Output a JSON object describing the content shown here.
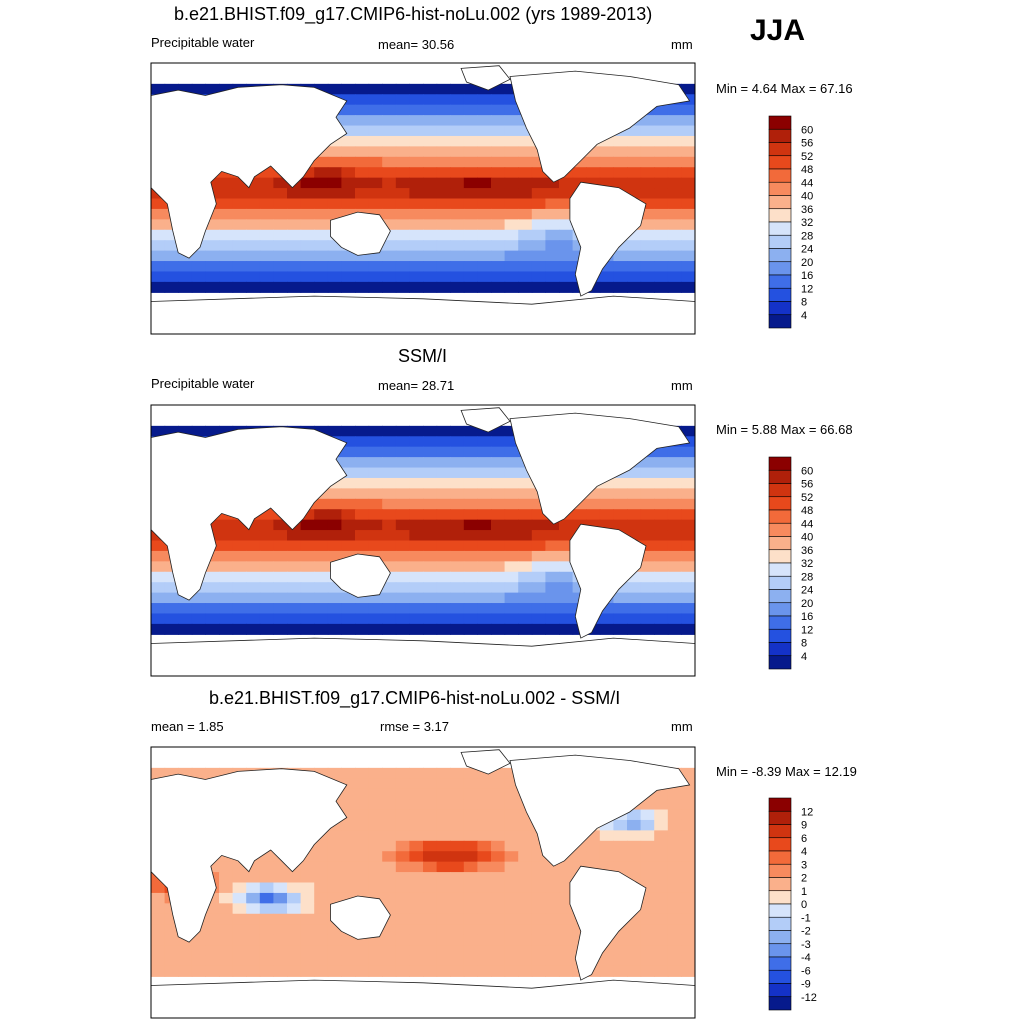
{
  "season": "JJA",
  "chart_data": [
    {
      "type": "heatmap",
      "title": "b.e21.BHIST.f09_g17.CMIP6-hist-noLu.002 (yrs 1989-2013)",
      "variable": "Precipitable water",
      "mean_label": "mean=  30.56",
      "units": "mm",
      "minmax_label": "Min =   4.64 Max =  67.16",
      "min": 4.64,
      "max": 67.16,
      "mean": 30.56,
      "colorbar": {
        "ticks": [
          "60",
          "56",
          "52",
          "48",
          "44",
          "40",
          "36",
          "32",
          "28",
          "24",
          "20",
          "16",
          "12",
          "8",
          "4"
        ],
        "colors": [
          "#8b0000",
          "#b0200a",
          "#d03410",
          "#e8491c",
          "#f26a3a",
          "#f78a5e",
          "#fab08b",
          "#fde0c9",
          "#d6e4fb",
          "#b3cdf8",
          "#8cb0f0",
          "#6a94ec",
          "#3f6ee8",
          "#2451e0",
          "#1432c8",
          "#061a8c"
        ]
      }
    },
    {
      "type": "heatmap",
      "title": "SSM/I",
      "variable": "Precipitable water",
      "mean_label": "mean=  28.71",
      "units": "mm",
      "minmax_label": "Min =   5.88 Max =  66.68",
      "min": 5.88,
      "max": 66.68,
      "mean": 28.71,
      "colorbar": {
        "ticks": [
          "60",
          "56",
          "52",
          "48",
          "44",
          "40",
          "36",
          "32",
          "28",
          "24",
          "20",
          "16",
          "12",
          "8",
          "4"
        ],
        "colors": [
          "#8b0000",
          "#b0200a",
          "#d03410",
          "#e8491c",
          "#f26a3a",
          "#f78a5e",
          "#fab08b",
          "#fde0c9",
          "#d6e4fb",
          "#b3cdf8",
          "#8cb0f0",
          "#6a94ec",
          "#3f6ee8",
          "#2451e0",
          "#1432c8",
          "#061a8c"
        ]
      }
    },
    {
      "type": "heatmap",
      "title": "b.e21.BHIST.f09_g17.CMIP6-hist-noLu.002 - SSM/I",
      "mean_label": "mean =   1.85",
      "rmse_label": "rmse =   3.17",
      "units": "mm",
      "minmax_label": "Min =  -8.39 Max =  12.19",
      "min": -8.39,
      "max": 12.19,
      "mean": 1.85,
      "rmse": 3.17,
      "colorbar": {
        "ticks": [
          "12",
          "9",
          "6",
          "4",
          "3",
          "2",
          "1",
          "0",
          "-1",
          "-2",
          "-3",
          "-4",
          "-6",
          "-9",
          "-12"
        ],
        "colors": [
          "#8b0000",
          "#b0200a",
          "#d03410",
          "#e8491c",
          "#f26a3a",
          "#f78a5e",
          "#fab08b",
          "#fde0c9",
          "#d6e4fb",
          "#b3cdf8",
          "#8cb0f0",
          "#6a94ec",
          "#3f6ee8",
          "#2451e0",
          "#1432c8",
          "#061a8c"
        ]
      }
    }
  ]
}
